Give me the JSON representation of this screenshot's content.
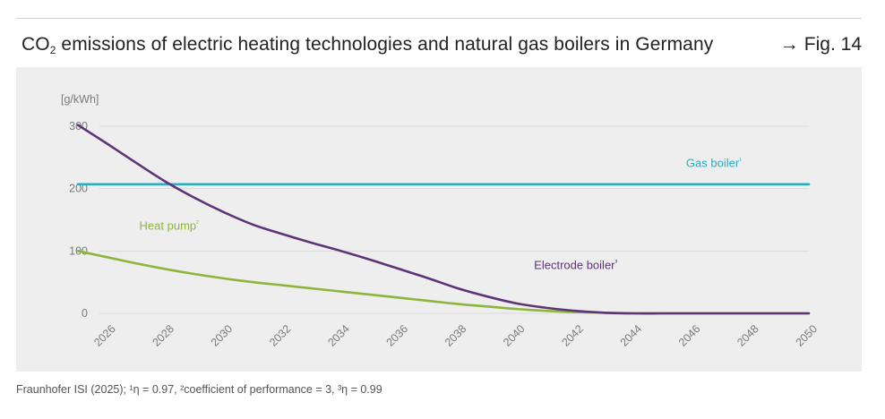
{
  "header": {
    "title_prefix": "CO",
    "title_subscript": "2",
    "title_suffix": " emissions of electric heating technologies and natural gas boilers in Germany",
    "fig_arrow": "→",
    "fig_ref": "Fig. 14"
  },
  "footer": {
    "source_text": "Fraunhofer ISI (2025); ¹η = 0.97, ²coefficient of performance = 3, ³η = 0.99"
  },
  "colors": {
    "gas": "#2aadc0",
    "heat_pump": "#8db53c",
    "electrode": "#5d3478",
    "grid": "#d9d9d9",
    "tick_text": "#7a7a7a"
  },
  "chart_data": {
    "type": "line",
    "ylabel": "[g/kWh]",
    "xlabel": "",
    "xlim": [
      2025,
      2050
    ],
    "ylim": [
      0,
      300
    ],
    "x_ticks": [
      "2026",
      "2028",
      "2030",
      "2032",
      "2034",
      "2036",
      "2038",
      "2040",
      "2042",
      "2044",
      "2046",
      "2048",
      "2050"
    ],
    "y_ticks": [
      "0",
      "100",
      "200",
      "300"
    ],
    "grid": true,
    "series": [
      {
        "name": "Gas boiler",
        "superscript": "1",
        "color_key": "gas",
        "x": [
          2025,
          2050
        ],
        "y": [
          207,
          207
        ]
      },
      {
        "name": "Heat pump",
        "superscript": "2",
        "color_key": "heat_pump",
        "x": [
          2025,
          2026,
          2027,
          2028,
          2029,
          2030,
          2031,
          2032,
          2033,
          2034,
          2035,
          2036,
          2037,
          2038,
          2039,
          2040,
          2041,
          2042,
          2043,
          2044,
          2045,
          2046,
          2047,
          2048,
          2049,
          2050
        ],
        "y": [
          100,
          90,
          80,
          71,
          63,
          56,
          50,
          45,
          40,
          35,
          30,
          25,
          20,
          15,
          11,
          7,
          4,
          2,
          1,
          0,
          0,
          0,
          0,
          0,
          0,
          0
        ]
      },
      {
        "name": "Electrode boiler",
        "superscript": "3",
        "color_key": "electrode",
        "x": [
          2025,
          2026,
          2027,
          2028,
          2029,
          2030,
          2031,
          2032,
          2033,
          2034,
          2035,
          2036,
          2037,
          2038,
          2039,
          2040,
          2041,
          2042,
          2043,
          2044,
          2045,
          2046,
          2047,
          2048,
          2049,
          2050
        ],
        "y": [
          302,
          272,
          241,
          211,
          185,
          162,
          142,
          127,
          113,
          100,
          86,
          71,
          56,
          40,
          27,
          16,
          9,
          4,
          1,
          0,
          0,
          0,
          0,
          0,
          0,
          0
        ]
      }
    ],
    "labels": [
      {
        "text": "Gas boiler",
        "sup": "¹",
        "series": 0,
        "x": 2045.8,
        "y": 235
      },
      {
        "text": "Heat pump",
        "sup": "²",
        "series": 1,
        "x": 2027.1,
        "y": 134
      },
      {
        "text": "Electrode boiler",
        "sup": "³",
        "series": 2,
        "x": 2040.6,
        "y": 71
      }
    ]
  }
}
